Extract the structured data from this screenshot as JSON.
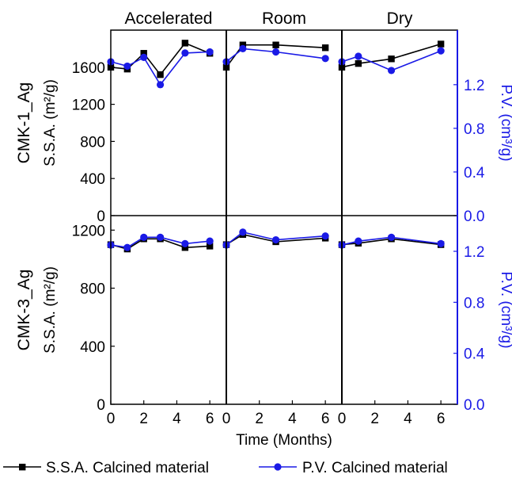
{
  "figure": {
    "row_titles": [
      "CMK-1_Ag",
      "CMK-3_Ag"
    ],
    "left_axis_label": "S.S.A. (m²/g)",
    "right_axis_label": "P.V. (cm³/g)",
    "x_axis_label": "Time (Months)",
    "column_titles": [
      "Accelerated",
      "Room",
      "Dry"
    ],
    "legend": [
      "S.S.A. Calcined material",
      "P.V. Calcined material"
    ],
    "colors": {
      "ssa": "#000000",
      "pv": "#1a1ae6",
      "axis_right": "#1a1ae6"
    }
  },
  "chart_data": [
    {
      "type": "line",
      "row": "CMK-1_Ag",
      "column": "Accelerated",
      "series": [
        {
          "name": "S.S.A. Calcined material",
          "axis": "left",
          "x": [
            0,
            1,
            2,
            3,
            4.5,
            6
          ],
          "values": [
            1600,
            1580,
            1750,
            1520,
            1860,
            1750
          ]
        },
        {
          "name": "P.V. Calcined material",
          "axis": "right",
          "x": [
            0,
            1,
            2,
            3,
            4.5,
            6
          ],
          "values": [
            1.41,
            1.37,
            1.45,
            1.2,
            1.49,
            1.5
          ]
        }
      ],
      "xlim": [
        0,
        7
      ],
      "ylim": [
        0,
        2000
      ],
      "y2lim": [
        0,
        1.7
      ],
      "xticks": [
        0,
        2,
        4,
        6
      ],
      "yticks": [
        0,
        400,
        800,
        1200,
        1600
      ],
      "y2ticks": [
        0.0,
        0.4,
        0.8,
        1.2
      ]
    },
    {
      "type": "line",
      "row": "CMK-1_Ag",
      "column": "Room",
      "series": [
        {
          "name": "S.S.A. Calcined material",
          "axis": "left",
          "x": [
            0,
            1,
            3,
            6
          ],
          "values": [
            1600,
            1840,
            1840,
            1810
          ]
        },
        {
          "name": "P.V. Calcined material",
          "axis": "right",
          "x": [
            0,
            1,
            3,
            6
          ],
          "values": [
            1.41,
            1.53,
            1.5,
            1.44
          ]
        }
      ],
      "xlim": [
        0,
        7
      ],
      "ylim": [
        0,
        2000
      ],
      "y2lim": [
        0,
        1.7
      ],
      "xticks": [
        0,
        2,
        4,
        6
      ],
      "yticks": [
        0,
        400,
        800,
        1200,
        1600
      ],
      "y2ticks": [
        0.0,
        0.4,
        0.8,
        1.2
      ]
    },
    {
      "type": "line",
      "row": "CMK-1_Ag",
      "column": "Dry",
      "series": [
        {
          "name": "S.S.A. Calcined material",
          "axis": "left",
          "x": [
            0,
            1,
            3,
            6
          ],
          "values": [
            1600,
            1640,
            1690,
            1850
          ]
        },
        {
          "name": "P.V. Calcined material",
          "axis": "right",
          "x": [
            0,
            1,
            3,
            6
          ],
          "values": [
            1.41,
            1.46,
            1.33,
            1.51
          ]
        }
      ],
      "xlim": [
        0,
        7
      ],
      "ylim": [
        0,
        2000
      ],
      "y2lim": [
        0,
        1.7
      ],
      "xticks": [
        0,
        2,
        4,
        6
      ],
      "yticks": [
        0,
        400,
        800,
        1200,
        1600
      ],
      "y2ticks": [
        0.0,
        0.4,
        0.8,
        1.2
      ]
    },
    {
      "type": "line",
      "row": "CMK-3_Ag",
      "column": "Accelerated",
      "series": [
        {
          "name": "S.S.A. Calcined material",
          "axis": "left",
          "x": [
            0,
            1,
            2,
            3,
            4.5,
            6
          ],
          "values": [
            1100,
            1070,
            1140,
            1140,
            1080,
            1090
          ]
        },
        {
          "name": "P.V. Calcined material",
          "axis": "right",
          "x": [
            0,
            1,
            2,
            3,
            4.5,
            6
          ],
          "values": [
            1.25,
            1.23,
            1.31,
            1.31,
            1.26,
            1.28
          ]
        }
      ],
      "xlim": [
        0,
        7
      ],
      "ylim": [
        0,
        1300
      ],
      "y2lim": [
        0,
        1.48
      ],
      "xticks": [
        0,
        2,
        4,
        6
      ],
      "yticks": [
        0,
        400,
        800,
        1200
      ],
      "y2ticks": [
        0.0,
        0.4,
        0.8,
        1.2
      ]
    },
    {
      "type": "line",
      "row": "CMK-3_Ag",
      "column": "Room",
      "series": [
        {
          "name": "S.S.A. Calcined material",
          "axis": "left",
          "x": [
            0,
            1,
            3,
            6
          ],
          "values": [
            1100,
            1170,
            1120,
            1145
          ]
        },
        {
          "name": "P.V. Calcined material",
          "axis": "right",
          "x": [
            0,
            1,
            3,
            6
          ],
          "values": [
            1.25,
            1.35,
            1.29,
            1.32
          ]
        }
      ],
      "xlim": [
        0,
        7
      ],
      "ylim": [
        0,
        1300
      ],
      "y2lim": [
        0,
        1.48
      ],
      "xticks": [
        0,
        2,
        4,
        6
      ],
      "yticks": [
        0,
        400,
        800,
        1200
      ],
      "y2ticks": [
        0.0,
        0.4,
        0.8,
        1.2
      ]
    },
    {
      "type": "line",
      "row": "CMK-3_Ag",
      "column": "Dry",
      "series": [
        {
          "name": "S.S.A. Calcined material",
          "axis": "left",
          "x": [
            0,
            1,
            3,
            6
          ],
          "values": [
            1100,
            1110,
            1140,
            1100
          ]
        },
        {
          "name": "P.V. Calcined material",
          "axis": "right",
          "x": [
            0,
            1,
            3,
            6
          ],
          "values": [
            1.25,
            1.28,
            1.31,
            1.26
          ]
        }
      ],
      "xlim": [
        0,
        7
      ],
      "ylim": [
        0,
        1300
      ],
      "y2lim": [
        0,
        1.48
      ],
      "xticks": [
        0,
        2,
        4,
        6
      ],
      "yticks": [
        0,
        400,
        800,
        1200
      ],
      "y2ticks": [
        0.0,
        0.4,
        0.8,
        1.2
      ]
    }
  ]
}
